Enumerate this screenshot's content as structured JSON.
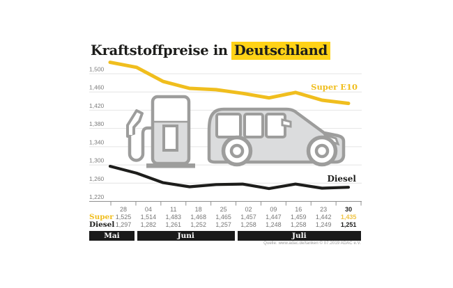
{
  "title": {
    "prefix": "Kraftstoffpreise in",
    "highlight": "Deutschland"
  },
  "chart_data": {
    "type": "line",
    "x_dates": [
      "28",
      "04",
      "11",
      "18",
      "25",
      "02",
      "09",
      "16",
      "23",
      "30"
    ],
    "months": [
      {
        "label": "Mai",
        "start": 0,
        "end": 0
      },
      {
        "label": "Juni",
        "start": 1,
        "end": 4
      },
      {
        "label": "Juli",
        "start": 5,
        "end": 9
      }
    ],
    "series": [
      {
        "name": "Super",
        "chart_label": "Super E10",
        "color": "#F0BE1E",
        "values": [
          1525,
          1514,
          1483,
          1468,
          1465,
          1457,
          1447,
          1459,
          1442,
          1435
        ]
      },
      {
        "name": "Diesel",
        "chart_label": "Diesel",
        "color": "#1D1D1B",
        "values": [
          1297,
          1282,
          1261,
          1252,
          1257,
          1258,
          1248,
          1258,
          1249,
          1251
        ]
      }
    ],
    "yticks": [
      1500,
      1460,
      1420,
      1380,
      1340,
      1300,
      1260,
      1220
    ],
    "ylim": [
      1220,
      1530
    ],
    "grid": true,
    "legend_position": "inline-right"
  },
  "source": "Quelle: www.adac.de/tanken   © 07.2019  ADAC e.V.",
  "colors": {
    "accent_yellow": "#F0BE1E",
    "highlight_yellow": "#FFD216",
    "value_yellow": "#EFC446",
    "black": "#1D1D1B",
    "grid_line": "#E4E4E4",
    "axis_line": "#8F8F8F",
    "axis_text": "#7B7B7B",
    "icon_stroke": "#9D9D9C",
    "icon_fill": "#DBDCDD",
    "month_bar": "#1A1A1A"
  },
  "icons": [
    "fuel-pump-icon",
    "car-icon"
  ]
}
